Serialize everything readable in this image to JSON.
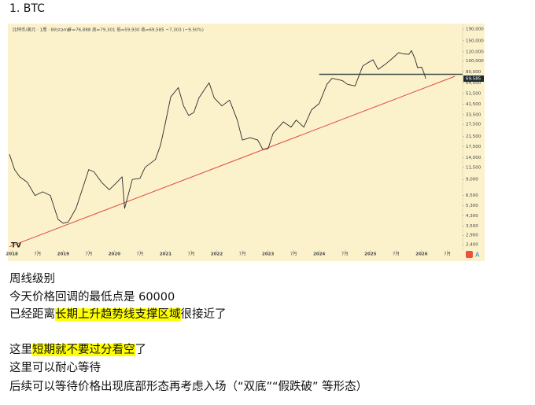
{
  "heading": "1.  BTC",
  "chart_data": {
    "type": "line",
    "title": "比特币/美元 · 1周 · Bitstamp",
    "subtitle": "开=76,888 高=79,301 低=59,930 收=69,585 −7,303 (−9.50%)",
    "log_scale": true,
    "grid": false,
    "background": "#fbf2cc",
    "x": [
      2017.95,
      2018.05,
      2018.15,
      2018.3,
      2018.45,
      2018.6,
      2018.75,
      2018.9,
      2019.0,
      2019.1,
      2019.25,
      2019.4,
      2019.5,
      2019.6,
      2019.75,
      2019.9,
      2020.05,
      2020.15,
      2020.2,
      2020.35,
      2020.5,
      2020.6,
      2020.8,
      2020.9,
      2021.0,
      2021.1,
      2021.25,
      2021.35,
      2021.45,
      2021.55,
      2021.65,
      2021.75,
      2021.85,
      2021.95,
      2022.1,
      2022.25,
      2022.4,
      2022.5,
      2022.65,
      2022.8,
      2022.9,
      2023.0,
      2023.1,
      2023.3,
      2023.45,
      2023.55,
      2023.7,
      2023.85,
      2024.0,
      2024.15,
      2024.25,
      2024.45,
      2024.55,
      2024.7,
      2024.85,
      2024.95,
      2025.05,
      2025.15,
      2025.3,
      2025.45,
      2025.55,
      2025.65,
      2025.75,
      2025.8,
      2025.87,
      2025.92,
      2026.0,
      2026.05,
      2026.08
    ],
    "series": [
      {
        "name": "BTC",
        "color": "#2b2b2b",
        "values": [
          15000,
          11000,
          9500,
          8500,
          6500,
          7000,
          6500,
          4000,
          3700,
          3800,
          5000,
          8000,
          11000,
          10500,
          8500,
          7300,
          8500,
          9500,
          5000,
          9000,
          9200,
          11500,
          13500,
          18000,
          29000,
          48000,
          58000,
          40000,
          33000,
          35000,
          47000,
          55000,
          64000,
          47000,
          40000,
          45000,
          30000,
          20000,
          21000,
          20000,
          16500,
          16800,
          23000,
          29000,
          26000,
          30000,
          26000,
          37000,
          42000,
          62000,
          70000,
          67000,
          62000,
          60000,
          90000,
          96000,
          102000,
          84000,
          94000,
          107000,
          118000,
          115000,
          114000,
          123000,
          104000,
          87000,
          88000,
          77000,
          69585
        ]
      }
    ],
    "support_line": {
      "color": "#3d4a45",
      "x": [
        2024.0,
        2026.8
      ],
      "values": [
        76000,
        76000
      ]
    },
    "trendline": {
      "color": "#e04a3f",
      "x": [
        2017.95,
        2026.65
      ],
      "values": [
        2300,
        73000
      ]
    },
    "last_price": {
      "value": 69585,
      "label": "69,585"
    },
    "xlim": [
      2017.92,
      2026.8
    ],
    "ylim": [
      2216,
      206000
    ],
    "xticks": [
      2018,
      {
        "value": 2018.5,
        "label": "7月"
      },
      2019,
      {
        "value": 2019.5,
        "label": "7月"
      },
      2020,
      {
        "value": 2020.5,
        "label": "7月"
      },
      2021,
      {
        "value": 2021.5,
        "label": "7月"
      },
      2022,
      {
        "value": 2022.5,
        "label": "7月"
      },
      2023,
      {
        "value": 2023.5,
        "label": "7月"
      },
      2024,
      {
        "value": 2024.5,
        "label": "7月"
      },
      2025,
      {
        "value": 2025.5,
        "label": "7月"
      },
      2026,
      {
        "value": 2026.5,
        "label": "7月"
      }
    ],
    "yticks": [
      {
        "value": 190000,
        "label": "190,000"
      },
      {
        "value": 150000,
        "label": "150,000"
      },
      {
        "value": 120000,
        "label": "120,000"
      },
      {
        "value": 100000,
        "label": "100,000"
      },
      {
        "value": 80000,
        "label": "80,000"
      },
      {
        "value": 64000,
        "label": "64,000"
      },
      {
        "value": 51500,
        "label": "51,500"
      },
      {
        "value": 41500,
        "label": "41,500"
      },
      {
        "value": 33500,
        "label": "33,500"
      },
      {
        "value": 27500,
        "label": "27,500"
      },
      {
        "value": 21500,
        "label": "21,500"
      },
      {
        "value": 17500,
        "label": "17,500"
      },
      {
        "value": 14000,
        "label": "14,000"
      },
      {
        "value": 11500,
        "label": "11,500"
      },
      {
        "value": 9000,
        "label": "9,000"
      },
      {
        "value": 6500,
        "label": "6,500"
      },
      {
        "value": 5300,
        "label": "5,300"
      },
      {
        "value": 4300,
        "label": "4,300"
      },
      {
        "value": 3500,
        "label": "3,500"
      },
      {
        "value": 2900,
        "label": "2,900"
      },
      {
        "value": 2400,
        "label": "2,400"
      }
    ]
  },
  "paragraphs": [
    [
      "周线级别"
    ],
    [
      "今天价格回调的最低点是 60000"
    ],
    [
      "已经距离",
      "长期上升趋势线支撑区域",
      "很接近了"
    ],
    [
      "这里",
      "短期就不要过分看空",
      "了"
    ],
    [
      "这里可以耐心等待"
    ],
    [
      "后续可以等待价格出现底部形态再考虑入场（“双底”“假跌破” 等形态）"
    ]
  ]
}
